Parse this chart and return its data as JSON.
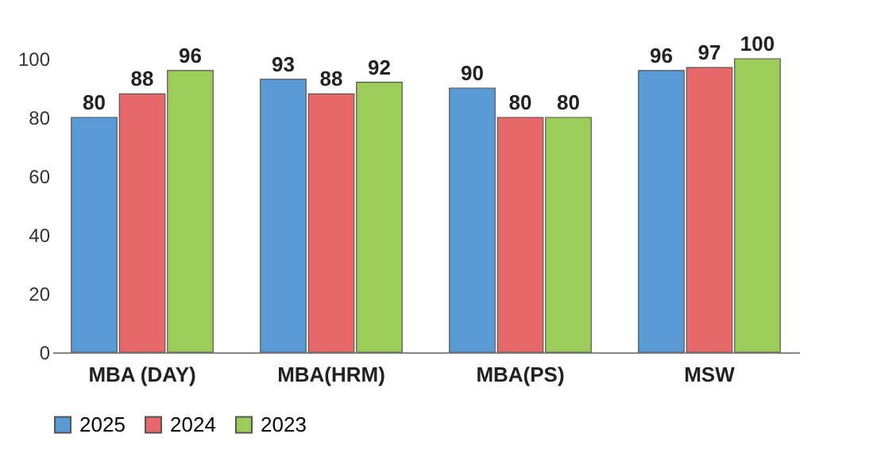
{
  "chart_data": {
    "type": "bar",
    "categories": [
      "MBA (DAY)",
      "MBA(HRM)",
      "MBA(PS)",
      "MSW"
    ],
    "series": [
      {
        "name": "2025",
        "color": "#5b9bd5",
        "values": [
          80,
          93,
          90,
          96
        ]
      },
      {
        "name": "2024",
        "color": "#e8686a",
        "values": [
          88,
          88,
          80,
          97
        ]
      },
      {
        "name": "2023",
        "color": "#9ccc5a",
        "values": [
          96,
          92,
          80,
          100
        ]
      }
    ],
    "ylim": [
      0,
      100
    ],
    "yticks": [
      0,
      20,
      40,
      60,
      80,
      100
    ],
    "grid": false,
    "legend": "bottom",
    "data_labels": true
  }
}
